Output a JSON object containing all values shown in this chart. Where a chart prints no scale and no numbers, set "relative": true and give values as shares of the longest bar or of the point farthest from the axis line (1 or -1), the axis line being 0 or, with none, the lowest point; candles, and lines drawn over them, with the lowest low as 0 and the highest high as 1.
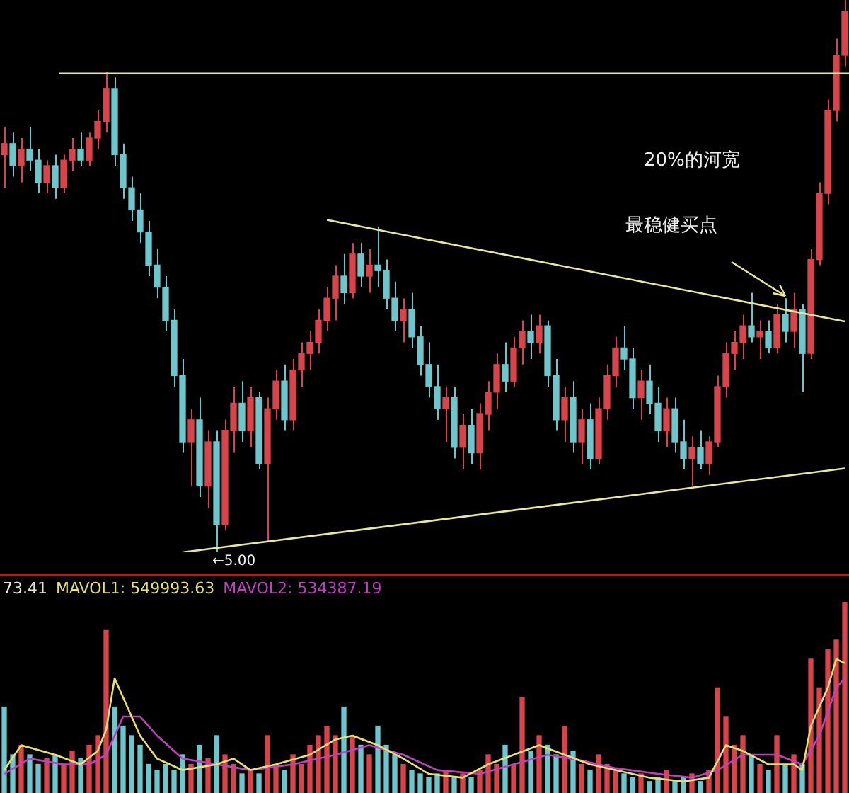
{
  "chart_data": [
    {
      "type": "candlestick",
      "relative": true,
      "tick_labels": false,
      "categories": [
        null,
        null,
        null,
        null,
        null,
        null,
        null,
        null,
        null,
        null,
        null,
        null,
        null,
        null,
        null,
        null,
        null,
        null,
        null,
        null,
        null,
        null,
        null,
        null,
        null,
        null,
        null,
        null,
        null,
        null,
        null,
        null,
        null,
        null,
        null,
        null,
        null,
        null,
        null,
        null,
        null,
        null,
        null,
        null,
        null,
        null,
        null,
        null,
        null,
        null,
        null,
        null,
        null,
        null,
        null,
        null,
        null,
        null,
        null,
        null,
        null,
        null,
        null,
        null,
        null,
        null,
        null,
        null,
        null,
        null,
        null,
        null,
        null,
        null,
        null,
        null,
        null,
        null,
        null,
        null,
        null,
        null,
        null,
        null,
        null,
        null,
        null,
        null,
        null,
        null,
        null,
        null,
        null,
        null,
        null,
        null,
        null,
        null,
        null,
        null
      ],
      "ohlc": [
        [
          0.72,
          0.77,
          0.66,
          0.74
        ],
        [
          0.74,
          0.76,
          0.68,
          0.7
        ],
        [
          0.7,
          0.75,
          0.67,
          0.73
        ],
        [
          0.73,
          0.77,
          0.69,
          0.71
        ],
        [
          0.71,
          0.73,
          0.65,
          0.67
        ],
        [
          0.67,
          0.71,
          0.65,
          0.7
        ],
        [
          0.7,
          0.72,
          0.64,
          0.66
        ],
        [
          0.66,
          0.72,
          0.65,
          0.71
        ],
        [
          0.71,
          0.75,
          0.69,
          0.73
        ],
        [
          0.73,
          0.76,
          0.7,
          0.71
        ],
        [
          0.71,
          0.76,
          0.7,
          0.75
        ],
        [
          0.75,
          0.8,
          0.73,
          0.78
        ],
        [
          0.78,
          0.87,
          0.76,
          0.84
        ],
        [
          0.84,
          0.86,
          0.7,
          0.72
        ],
        [
          0.72,
          0.74,
          0.64,
          0.66
        ],
        [
          0.66,
          0.68,
          0.6,
          0.62
        ],
        [
          0.62,
          0.65,
          0.56,
          0.58
        ],
        [
          0.58,
          0.6,
          0.5,
          0.52
        ],
        [
          0.52,
          0.55,
          0.46,
          0.48
        ],
        [
          0.48,
          0.5,
          0.4,
          0.42
        ],
        [
          0.42,
          0.44,
          0.3,
          0.32
        ],
        [
          0.32,
          0.35,
          0.18,
          0.2
        ],
        [
          0.2,
          0.26,
          0.12,
          0.24
        ],
        [
          0.24,
          0.28,
          0.1,
          0.12
        ],
        [
          0.12,
          0.22,
          0.08,
          0.2
        ],
        [
          0.2,
          0.22,
          0.0,
          0.05
        ],
        [
          0.05,
          0.24,
          0.04,
          0.22
        ],
        [
          0.22,
          0.3,
          0.18,
          0.27
        ],
        [
          0.27,
          0.31,
          0.2,
          0.22
        ],
        [
          0.22,
          0.3,
          0.19,
          0.28
        ],
        [
          0.28,
          0.29,
          0.15,
          0.16
        ],
        [
          0.16,
          0.28,
          0.02,
          0.26
        ],
        [
          0.26,
          0.33,
          0.24,
          0.31
        ],
        [
          0.31,
          0.34,
          0.22,
          0.24
        ],
        [
          0.24,
          0.35,
          0.22,
          0.33
        ],
        [
          0.33,
          0.38,
          0.3,
          0.36
        ],
        [
          0.36,
          0.4,
          0.33,
          0.38
        ],
        [
          0.38,
          0.44,
          0.36,
          0.42
        ],
        [
          0.42,
          0.48,
          0.4,
          0.46
        ],
        [
          0.46,
          0.52,
          0.42,
          0.5
        ],
        [
          0.5,
          0.54,
          0.45,
          0.47
        ],
        [
          0.47,
          0.56,
          0.46,
          0.54
        ],
        [
          0.54,
          0.56,
          0.48,
          0.5
        ],
        [
          0.5,
          0.55,
          0.47,
          0.52
        ],
        [
          0.52,
          0.59,
          0.48,
          0.51
        ],
        [
          0.51,
          0.53,
          0.44,
          0.46
        ],
        [
          0.46,
          0.49,
          0.4,
          0.42
        ],
        [
          0.42,
          0.46,
          0.38,
          0.44
        ],
        [
          0.44,
          0.47,
          0.37,
          0.39
        ],
        [
          0.39,
          0.41,
          0.32,
          0.34
        ],
        [
          0.34,
          0.38,
          0.28,
          0.3
        ],
        [
          0.3,
          0.34,
          0.24,
          0.26
        ],
        [
          0.26,
          0.3,
          0.2,
          0.28
        ],
        [
          0.28,
          0.3,
          0.17,
          0.19
        ],
        [
          0.19,
          0.25,
          0.15,
          0.23
        ],
        [
          0.23,
          0.26,
          0.16,
          0.18
        ],
        [
          0.18,
          0.27,
          0.15,
          0.25
        ],
        [
          0.25,
          0.31,
          0.22,
          0.29
        ],
        [
          0.29,
          0.36,
          0.26,
          0.34
        ],
        [
          0.34,
          0.38,
          0.29,
          0.31
        ],
        [
          0.31,
          0.39,
          0.3,
          0.37
        ],
        [
          0.37,
          0.42,
          0.34,
          0.4
        ],
        [
          0.4,
          0.43,
          0.35,
          0.38
        ],
        [
          0.38,
          0.43,
          0.36,
          0.41
        ],
        [
          0.41,
          0.42,
          0.3,
          0.32
        ],
        [
          0.32,
          0.35,
          0.22,
          0.24
        ],
        [
          0.24,
          0.3,
          0.2,
          0.28
        ],
        [
          0.28,
          0.31,
          0.18,
          0.2
        ],
        [
          0.2,
          0.26,
          0.16,
          0.24
        ],
        [
          0.24,
          0.27,
          0.15,
          0.17
        ],
        [
          0.17,
          0.28,
          0.16,
          0.26
        ],
        [
          0.26,
          0.34,
          0.24,
          0.32
        ],
        [
          0.32,
          0.39,
          0.3,
          0.37
        ],
        [
          0.37,
          0.41,
          0.33,
          0.35
        ],
        [
          0.35,
          0.37,
          0.26,
          0.28
        ],
        [
          0.28,
          0.33,
          0.24,
          0.31
        ],
        [
          0.31,
          0.34,
          0.25,
          0.27
        ],
        [
          0.27,
          0.3,
          0.2,
          0.22
        ],
        [
          0.22,
          0.28,
          0.19,
          0.26
        ],
        [
          0.26,
          0.28,
          0.18,
          0.2
        ],
        [
          0.2,
          0.24,
          0.15,
          0.17
        ],
        [
          0.17,
          0.21,
          0.12,
          0.19
        ],
        [
          0.19,
          0.22,
          0.15,
          0.16
        ],
        [
          0.16,
          0.21,
          0.14,
          0.2
        ],
        [
          0.2,
          0.32,
          0.19,
          0.3
        ],
        [
          0.3,
          0.38,
          0.28,
          0.36
        ],
        [
          0.36,
          0.4,
          0.33,
          0.38
        ],
        [
          0.38,
          0.43,
          0.35,
          0.41
        ],
        [
          0.41,
          0.47,
          0.38,
          0.39
        ],
        [
          0.39,
          0.42,
          0.35,
          0.4
        ],
        [
          0.4,
          0.42,
          0.36,
          0.37
        ],
        [
          0.37,
          0.45,
          0.36,
          0.43
        ],
        [
          0.43,
          0.46,
          0.38,
          0.4
        ],
        [
          0.4,
          0.47,
          0.37,
          0.44
        ],
        [
          0.44,
          0.45,
          0.29,
          0.36
        ],
        [
          0.36,
          0.55,
          0.35,
          0.53
        ],
        [
          0.53,
          0.67,
          0.52,
          0.65
        ],
        [
          0.65,
          0.82,
          0.63,
          0.8
        ],
        [
          0.8,
          0.93,
          0.78,
          0.9
        ],
        [
          0.9,
          1.0,
          0.88,
          0.98
        ]
      ],
      "colors": [
        "#d9434a",
        "#6cc6cc",
        "#d9434a",
        "#6cc6cc",
        "#6cc6cc",
        "#d9434a",
        "#6cc6cc",
        "#d9434a",
        "#d9434a",
        "#6cc6cc",
        "#d9434a",
        "#d9434a",
        "#d9434a",
        "#6cc6cc",
        "#6cc6cc",
        "#6cc6cc",
        "#6cc6cc",
        "#6cc6cc",
        "#6cc6cc",
        "#6cc6cc",
        "#6cc6cc",
        "#6cc6cc",
        "#d9434a",
        "#6cc6cc",
        "#d9434a",
        "#6cc6cc",
        "#d9434a",
        "#d9434a",
        "#6cc6cc",
        "#d9434a",
        "#6cc6cc",
        "#d9434a",
        "#d9434a",
        "#6cc6cc",
        "#d9434a",
        "#d9434a",
        "#d9434a",
        "#d9434a",
        "#d9434a",
        "#d9434a",
        "#6cc6cc",
        "#d9434a",
        "#6cc6cc",
        "#d9434a",
        "#6cc6cc",
        "#6cc6cc",
        "#6cc6cc",
        "#d9434a",
        "#6cc6cc",
        "#6cc6cc",
        "#6cc6cc",
        "#6cc6cc",
        "#d9434a",
        "#6cc6cc",
        "#d9434a",
        "#6cc6cc",
        "#d9434a",
        "#d9434a",
        "#d9434a",
        "#6cc6cc",
        "#d9434a",
        "#d9434a",
        "#6cc6cc",
        "#d9434a",
        "#6cc6cc",
        "#6cc6cc",
        "#d9434a",
        "#6cc6cc",
        "#d9434a",
        "#6cc6cc",
        "#d9434a",
        "#d9434a",
        "#d9434a",
        "#6cc6cc",
        "#6cc6cc",
        "#d9434a",
        "#6cc6cc",
        "#6cc6cc",
        "#d9434a",
        "#6cc6cc",
        "#6cc6cc",
        "#d9434a",
        "#6cc6cc",
        "#d9434a",
        "#d9434a",
        "#d9434a",
        "#d9434a",
        "#d9434a",
        "#6cc6cc",
        "#d9434a",
        "#6cc6cc",
        "#d9434a",
        "#6cc6cc",
        "#d9434a",
        "#6cc6cc",
        "#d9434a",
        "#d9434a",
        "#d9434a",
        "#d9434a",
        "#d9434a"
      ],
      "series": [
        {
          "type": "line",
          "color": "#e8e89a",
          "values": [
            null,
            null,
            null,
            null,
            null,
            null,
            null,
            null,
            null,
            null,
            null,
            null,
            null,
            null,
            null,
            null,
            null,
            null,
            null,
            null,
            null,
            null,
            null,
            null,
            null,
            null,
            null,
            null,
            null,
            null,
            null,
            null,
            null,
            null,
            null,
            null,
            null,
            null,
            0.602,
            null,
            null,
            null,
            null,
            null,
            null,
            null,
            null,
            null,
            null,
            null,
            null,
            null,
            null,
            null,
            null,
            null,
            null,
            null,
            null,
            null,
            null,
            null,
            null,
            null,
            null,
            null,
            null,
            null,
            null,
            null,
            null,
            null,
            null,
            null,
            null,
            null,
            null,
            null,
            null,
            null,
            null,
            null,
            null,
            null,
            null,
            null,
            null,
            null,
            null,
            null,
            null,
            null,
            null,
            null,
            null,
            null,
            null,
            null,
            null,
            0.418
          ]
        },
        {
          "type": "line",
          "color": "#e8e89a",
          "values": [
            null,
            null,
            null,
            null,
            null,
            null,
            null,
            null,
            null,
            null,
            null,
            null,
            null,
            null,
            null,
            null,
            null,
            null,
            null,
            null,
            null,
            0,
            null,
            null,
            null,
            null,
            null,
            null,
            null,
            null,
            null,
            null,
            null,
            null,
            null,
            null,
            null,
            null,
            null,
            null,
            null,
            null,
            null,
            null,
            null,
            null,
            null,
            null,
            null,
            null,
            null,
            null,
            null,
            null,
            null,
            null,
            null,
            null,
            null,
            null,
            null,
            null,
            null,
            null,
            null,
            null,
            null,
            null,
            null,
            null,
            null,
            null,
            null,
            null,
            null,
            null,
            null,
            null,
            null,
            null,
            null,
            null,
            null,
            null,
            null,
            null,
            null,
            null,
            null,
            null,
            null,
            null,
            null,
            null,
            null,
            null,
            null,
            null,
            null,
            0.152
          ]
        }
      ],
      "ref_lines": [
        {
          "axis": "y",
          "value": 0.867,
          "color": "#e8e89a"
        }
      ],
      "annotations": [
        "←5.00",
        "20%的河宽",
        "最稳健买点"
      ]
    },
    {
      "type": "bar",
      "title": "73.41",
      "relative": true,
      "tick_labels": false,
      "categories": [
        null,
        null,
        null,
        null,
        null,
        null,
        null,
        null,
        null,
        null,
        null,
        null,
        null,
        null,
        null,
        null,
        null,
        null,
        null,
        null,
        null,
        null,
        null,
        null,
        null,
        null,
        null,
        null,
        null,
        null,
        null,
        null,
        null,
        null,
        null,
        null,
        null,
        null,
        null,
        null,
        null,
        null,
        null,
        null,
        null,
        null,
        null,
        null,
        null,
        null,
        null,
        null,
        null,
        null,
        null,
        null,
        null,
        null,
        null,
        null,
        null,
        null,
        null,
        null,
        null,
        null,
        null,
        null,
        null,
        null,
        null,
        null,
        null,
        null,
        null,
        null,
        null,
        null,
        null,
        null,
        null,
        null,
        null,
        null,
        null,
        null,
        null,
        null,
        null,
        null,
        null,
        null,
        null,
        null,
        null,
        null,
        null,
        null,
        null,
        null
      ],
      "series": [
        {
          "type": "bar",
          "values": [
            0.45,
            0.2,
            0.25,
            0.2,
            0.15,
            0.18,
            0.2,
            0.15,
            0.22,
            0.18,
            0.25,
            0.3,
            0.85,
            0.45,
            0.35,
            0.3,
            0.25,
            0.15,
            0.12,
            0.15,
            0.12,
            0.2,
            0.15,
            0.25,
            0.18,
            0.3,
            0.2,
            0.15,
            0.1,
            0.12,
            0.1,
            0.3,
            0.15,
            0.12,
            0.2,
            0.15,
            0.25,
            0.3,
            0.35,
            0.3,
            0.45,
            0.3,
            0.25,
            0.2,
            0.35,
            0.25,
            0.2,
            0.15,
            0.12,
            0.1,
            0.08,
            0.1,
            0.12,
            0.08,
            0.1,
            0.08,
            0.12,
            0.2,
            0.15,
            0.25,
            0.15,
            0.5,
            0.22,
            0.3,
            0.25,
            0.2,
            0.35,
            0.22,
            0.15,
            0.12,
            0.2,
            0.15,
            0.12,
            0.1,
            0.08,
            0.1,
            0.06,
            0.08,
            0.12,
            0.06,
            0.08,
            0.1,
            0.06,
            0.12,
            0.55,
            0.4,
            0.25,
            0.3,
            0.2,
            0.15,
            0.12,
            0.3,
            0.15,
            0.2,
            0.15,
            0.7,
            0.55,
            0.75,
            0.8,
            1
          ],
          "colors": [
            "#6cc6cc",
            "#6cc6cc",
            "#d9434a",
            "#6cc6cc",
            "#6cc6cc",
            "#d9434a",
            "#6cc6cc",
            "#d9434a",
            "#d9434a",
            "#6cc6cc",
            "#d9434a",
            "#d9434a",
            "#d9434a",
            "#6cc6cc",
            "#6cc6cc",
            "#6cc6cc",
            "#6cc6cc",
            "#6cc6cc",
            "#6cc6cc",
            "#6cc6cc",
            "#6cc6cc",
            "#6cc6cc",
            "#d9434a",
            "#6cc6cc",
            "#d9434a",
            "#6cc6cc",
            "#d9434a",
            "#d9434a",
            "#6cc6cc",
            "#d9434a",
            "#6cc6cc",
            "#d9434a",
            "#d9434a",
            "#6cc6cc",
            "#d9434a",
            "#d9434a",
            "#d9434a",
            "#d9434a",
            "#d9434a",
            "#d9434a",
            "#6cc6cc",
            "#d9434a",
            "#6cc6cc",
            "#d9434a",
            "#6cc6cc",
            "#6cc6cc",
            "#6cc6cc",
            "#d9434a",
            "#6cc6cc",
            "#6cc6cc",
            "#6cc6cc",
            "#6cc6cc",
            "#d9434a",
            "#6cc6cc",
            "#d9434a",
            "#6cc6cc",
            "#d9434a",
            "#d9434a",
            "#d9434a",
            "#6cc6cc",
            "#d9434a",
            "#d9434a",
            "#6cc6cc",
            "#d9434a",
            "#6cc6cc",
            "#6cc6cc",
            "#d9434a",
            "#6cc6cc",
            "#d9434a",
            "#6cc6cc",
            "#d9434a",
            "#d9434a",
            "#d9434a",
            "#6cc6cc",
            "#6cc6cc",
            "#d9434a",
            "#6cc6cc",
            "#6cc6cc",
            "#d9434a",
            "#6cc6cc",
            "#6cc6cc",
            "#d9434a",
            "#6cc6cc",
            "#d9434a",
            "#d9434a",
            "#d9434a",
            "#d9434a",
            "#d9434a",
            "#6cc6cc",
            "#d9434a",
            "#6cc6cc",
            "#d9434a",
            "#6cc6cc",
            "#d9434a",
            "#6cc6cc",
            "#d9434a",
            "#d9434a",
            "#d9434a",
            "#d9434a",
            "#d9434a"
          ]
        },
        {
          "type": "line",
          "name": "MAVOL1: 549993.63",
          "color": "#e8e070",
          "values": [
            0.12,
            null,
            0.25,
            null,
            null,
            null,
            0.2,
            null,
            null,
            0.15,
            null,
            0.22,
            0.33,
            0.6,
            0.5,
            null,
            0.3,
            null,
            0.18,
            null,
            null,
            0.12,
            null,
            null,
            null,
            0.15,
            null,
            0.18,
            null,
            0.12,
            null,
            null,
            0.15,
            null,
            null,
            null,
            0.2,
            null,
            null,
            0.28,
            null,
            0.3,
            null,
            null,
            0.25,
            null,
            null,
            0.18,
            null,
            null,
            0.1,
            null,
            null,
            null,
            0.08,
            null,
            null,
            0.15,
            null,
            null,
            0.2,
            null,
            null,
            0.25,
            null,
            null,
            0.2,
            null,
            null,
            0.15,
            null,
            null,
            0.12,
            null,
            null,
            null,
            0.08,
            null,
            null,
            null,
            0.06,
            null,
            null,
            0.08,
            null,
            0.25,
            null,
            0.22,
            null,
            null,
            0.15,
            null,
            null,
            0.15,
            0.12,
            0.35,
            0.45,
            0.55,
            0.7,
            0.68
          ]
        },
        {
          "type": "line",
          "name": "MAVOL2: 534387.19",
          "color": "#c040c0",
          "values": [
            0.1,
            null,
            null,
            0.18,
            null,
            null,
            null,
            0.15,
            null,
            null,
            0.15,
            null,
            0.2,
            null,
            0.4,
            null,
            0.4,
            null,
            0.3,
            null,
            null,
            0.18,
            null,
            null,
            null,
            0.15,
            null,
            null,
            null,
            0.12,
            null,
            null,
            null,
            null,
            0.15,
            null,
            null,
            null,
            null,
            0.2,
            null,
            null,
            null,
            0.25,
            null,
            null,
            null,
            0.2,
            null,
            null,
            null,
            0.12,
            null,
            null,
            null,
            null,
            0.1,
            null,
            null,
            null,
            0.15,
            null,
            null,
            null,
            0.2,
            null,
            null,
            null,
            0.17,
            null,
            null,
            null,
            0.13,
            null,
            null,
            null,
            null,
            0.1,
            null,
            null,
            null,
            0.08,
            null,
            null,
            0.12,
            null,
            null,
            0.2,
            null,
            null,
            null,
            0.2,
            null,
            null,
            0.15,
            null,
            0.3,
            null,
            0.55,
            0.6
          ]
        }
      ]
    }
  ]
}
